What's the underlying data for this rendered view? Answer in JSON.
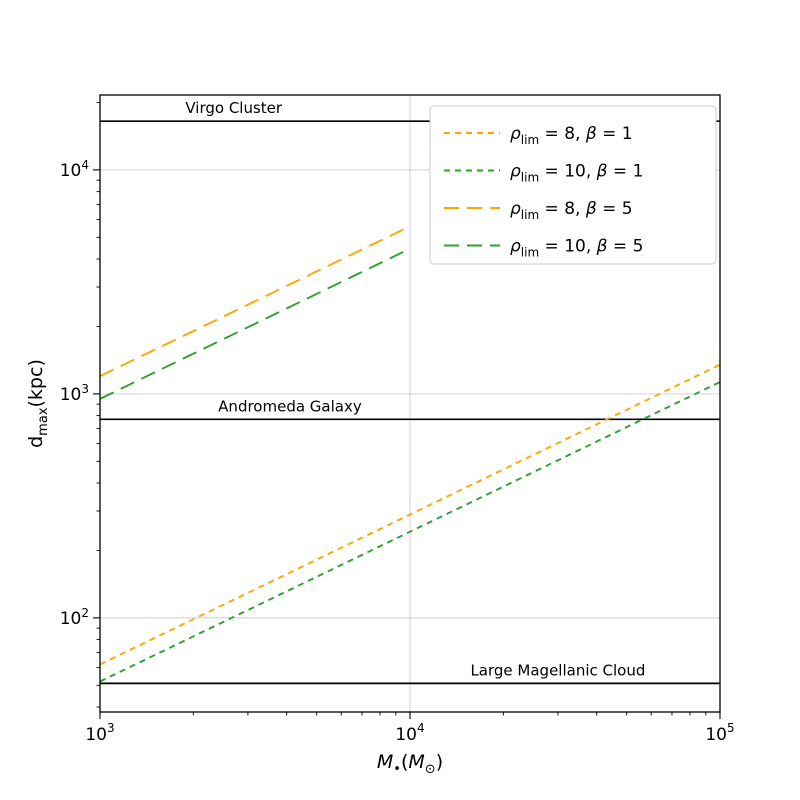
{
  "chart_data": {
    "type": "line",
    "title": "",
    "xlabel": {
      "base": "M",
      "base_sub": "•",
      "unit_open": "(",
      "unit_sym": "M",
      "unit_sub": "⊙",
      "unit_close": ")"
    },
    "ylabel": {
      "base": "d",
      "base_sub": "max",
      "unit": "(kpc)"
    },
    "x_axis": {
      "scale": "log",
      "min": 1000,
      "max": 100000,
      "major_tick_labels": [
        "10^3",
        "10^4",
        "10^5"
      ]
    },
    "y_axis": {
      "scale": "log",
      "min": 38,
      "max": 21600,
      "major_tick_labels": [
        "10^2",
        "10^3",
        "10^4"
      ]
    },
    "grid": true,
    "legend_position": "upper right",
    "colors": {
      "orange": "#ffa500",
      "green": "#2ca02c",
      "grid": "#cccccc",
      "axis": "#000000",
      "reference_line": "#000000",
      "legend_border": "#cccccc",
      "background": "#ffffff"
    },
    "series": [
      {
        "label": "ρ_lim = 8, β = 1",
        "color": "#ffa500",
        "dash": "short",
        "x": [
          1000,
          100000
        ],
        "y": [
          62,
          1350
        ]
      },
      {
        "label": "ρ_lim = 10, β = 1",
        "color": "#2ca02c",
        "dash": "short",
        "x": [
          1000,
          100000
        ],
        "y": [
          52,
          1130
        ]
      },
      {
        "label": "ρ_lim = 8, β = 5",
        "color": "#ffa500",
        "dash": "long",
        "x": [
          1000,
          10000
        ],
        "y": [
          1200,
          5600
        ]
      },
      {
        "label": "ρ_lim = 10, β = 5",
        "color": "#2ca02c",
        "dash": "long",
        "x": [
          1000,
          10000
        ],
        "y": [
          950,
          4450
        ]
      }
    ],
    "reference_lines": [
      {
        "label": "Virgo Cluster",
        "y": 16500,
        "label_x": 2700
      },
      {
        "label": "Andromeda Galaxy",
        "y": 770,
        "label_x": 4100
      },
      {
        "label": "Large Magellanic Cloud",
        "y": 51,
        "label_x": 30000
      }
    ]
  }
}
